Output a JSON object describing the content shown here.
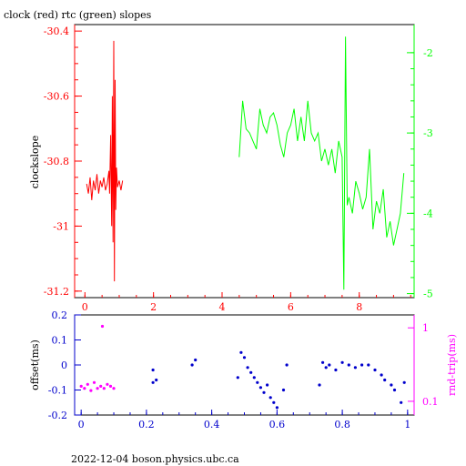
{
  "title": "clock (red) rtc (green) slopes",
  "footer": "2022-12-04 boson.physics.ubc.ca",
  "colors": {
    "red": "#ff0000",
    "green": "#00ff00",
    "blue": "#0000cc",
    "magenta": "#ff00ff",
    "frame": "#000000"
  },
  "chart_data": [
    {
      "type": "line",
      "ylabel": "clockslope",
      "xlim": [
        -0.3,
        9.6
      ],
      "ylim": [
        -31.22,
        -30.38
      ],
      "y2lim": [
        -5.05,
        -1.65
      ],
      "xticks": [
        "0",
        "2",
        "4",
        "6",
        "8"
      ],
      "xtick_values": [
        0,
        2,
        4,
        6,
        8
      ],
      "yticks": [
        "-30.4",
        "-30.6",
        "-30.8",
        "-31",
        "-31.2"
      ],
      "ytick_values": [
        -30.4,
        -30.6,
        -30.8,
        -31.0,
        -31.2
      ],
      "y2ticks": [
        "-2",
        "-3",
        "-4",
        "-5"
      ],
      "y2tick_values": [
        -2,
        -3,
        -4,
        -5
      ],
      "series": [
        {
          "color": "red",
          "axis": "left",
          "x": [
            0.05,
            0.1,
            0.15,
            0.2,
            0.25,
            0.3,
            0.35,
            0.4,
            0.45,
            0.5,
            0.55,
            0.6,
            0.65,
            0.7,
            0.72,
            0.75,
            0.78,
            0.8,
            0.82,
            0.84,
            0.86,
            0.88,
            0.9,
            0.92,
            0.95,
            1.0,
            1.05,
            1.1
          ],
          "y": [
            -30.87,
            -30.9,
            -30.85,
            -30.92,
            -30.86,
            -30.89,
            -30.84,
            -30.9,
            -30.86,
            -30.88,
            -30.85,
            -30.89,
            -30.87,
            -30.83,
            -30.9,
            -30.72,
            -31.0,
            -30.6,
            -31.05,
            -30.43,
            -31.17,
            -30.55,
            -30.95,
            -30.82,
            -30.88,
            -30.86,
            -30.89,
            -30.86
          ]
        },
        {
          "color": "green",
          "axis": "right",
          "x": [
            4.5,
            4.6,
            4.7,
            4.8,
            4.9,
            5.0,
            5.1,
            5.2,
            5.3,
            5.4,
            5.5,
            5.6,
            5.7,
            5.8,
            5.9,
            6.0,
            6.1,
            6.2,
            6.3,
            6.4,
            6.5,
            6.6,
            6.7,
            6.8,
            6.9,
            7.0,
            7.1,
            7.2,
            7.3,
            7.4,
            7.5,
            7.55,
            7.6,
            7.65,
            7.7,
            7.8,
            7.9,
            8.0,
            8.1,
            8.2,
            8.3,
            8.4,
            8.5,
            8.6,
            8.7,
            8.8,
            8.9,
            9.0,
            9.1,
            9.2,
            9.3
          ],
          "y": [
            -3.3,
            -2.6,
            -2.95,
            -3.0,
            -3.1,
            -3.2,
            -2.7,
            -2.9,
            -3.0,
            -2.8,
            -2.75,
            -2.9,
            -3.15,
            -3.3,
            -3.0,
            -2.9,
            -2.7,
            -3.1,
            -2.8,
            -3.1,
            -2.6,
            -3.0,
            -3.1,
            -3.0,
            -3.35,
            -3.2,
            -3.4,
            -3.2,
            -3.5,
            -3.1,
            -3.3,
            -4.95,
            -1.8,
            -3.9,
            -3.8,
            -4.0,
            -3.6,
            -3.75,
            -3.95,
            -3.8,
            -3.2,
            -4.2,
            -3.85,
            -4.0,
            -3.7,
            -4.3,
            -4.1,
            -4.4,
            -4.2,
            -4.0,
            -3.5
          ]
        }
      ]
    },
    {
      "type": "scatter",
      "ylabel": "offset(ms)",
      "y2label": "rnd-trip(ms)",
      "xlim": [
        -0.02,
        1.02
      ],
      "ylim": [
        -0.2,
        0.2
      ],
      "y2lim_log": [
        0.065,
        1.5
      ],
      "y2scale": "log",
      "xticks": [
        "0",
        "0.2",
        "0.4",
        "0.6",
        "0.8",
        "1"
      ],
      "xtick_values": [
        0,
        0.2,
        0.4,
        0.6,
        0.8,
        1.0
      ],
      "yticks": [
        "0.2",
        "0.1",
        "0",
        "-0.1",
        "-0.2"
      ],
      "ytick_values": [
        0.2,
        0.1,
        0.0,
        -0.1,
        -0.2
      ],
      "y2ticks": [
        "1",
        "0.1"
      ],
      "y2tick_values": [
        1,
        0.1
      ],
      "series": [
        {
          "color": "blue",
          "axis": "left",
          "x": [
            0.22,
            0.23,
            0.22,
            0.34,
            0.35,
            0.48,
            0.49,
            0.5,
            0.51,
            0.52,
            0.53,
            0.54,
            0.55,
            0.56,
            0.57,
            0.58,
            0.59,
            0.6,
            0.62,
            0.63,
            0.73,
            0.74,
            0.75,
            0.76,
            0.78,
            0.8,
            0.82,
            0.84,
            0.86,
            0.88,
            0.9,
            0.92,
            0.93,
            0.95,
            0.96,
            0.98,
            0.99
          ],
          "y": [
            -0.07,
            -0.06,
            -0.02,
            0.0,
            0.02,
            -0.05,
            0.05,
            0.03,
            -0.01,
            -0.03,
            -0.05,
            -0.07,
            -0.09,
            -0.11,
            -0.08,
            -0.13,
            -0.15,
            -0.17,
            -0.1,
            0.0,
            -0.08,
            0.01,
            -0.01,
            0.0,
            -0.02,
            0.01,
            0.0,
            -0.01,
            0.0,
            0.0,
            -0.02,
            -0.04,
            -0.06,
            -0.08,
            -0.1,
            -0.15,
            -0.07
          ]
        },
        {
          "color": "magenta",
          "axis": "right",
          "x": [
            0.0,
            0.01,
            0.02,
            0.03,
            0.04,
            0.05,
            0.06,
            0.065,
            0.07,
            0.08,
            0.09,
            0.1
          ],
          "y": [
            0.16,
            0.15,
            0.17,
            0.14,
            0.18,
            0.15,
            0.16,
            1.05,
            0.15,
            0.17,
            0.16,
            0.15
          ]
        }
      ]
    }
  ]
}
